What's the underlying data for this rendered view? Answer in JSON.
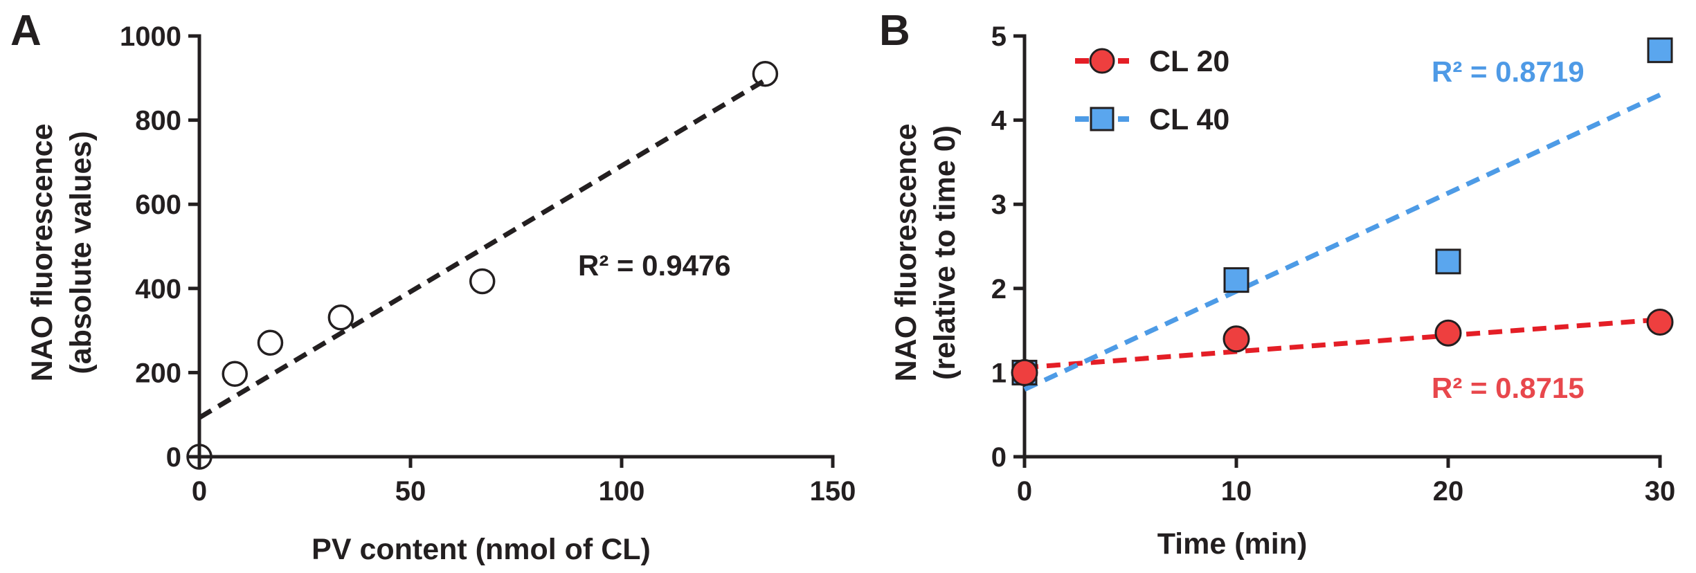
{
  "panels": {
    "a": {
      "label": "A"
    },
    "b": {
      "label": "B"
    }
  },
  "chart_data": [
    {
      "type": "scatter",
      "title": "",
      "xlabel": "PV content (nmol of CL)",
      "ylabel_line1": "NAO fluorescence",
      "ylabel_line2": "(absolute values)",
      "xlim": [
        0,
        150
      ],
      "ylim": [
        0,
        1000
      ],
      "xticks": [
        0,
        50,
        100,
        150
      ],
      "yticks": [
        0,
        200,
        400,
        600,
        800,
        1000
      ],
      "grid": false,
      "series": [
        {
          "marker": "open-circle",
          "color": "#231f20",
          "x": [
            0,
            8.4,
            16.8,
            33.5,
            67,
            134
          ],
          "y": [
            0,
            197,
            271,
            331,
            417,
            910
          ]
        }
      ],
      "trendline": {
        "style": "dashed",
        "color": "#231f20",
        "x": [
          0,
          134
        ],
        "y": [
          93,
          895
        ]
      },
      "annotation": "R² = 0.9476"
    },
    {
      "type": "scatter",
      "title": "",
      "xlabel": "Time (min)",
      "ylabel_line1": "NAO fluorescence",
      "ylabel_line2": "(relative to time 0)",
      "xlim": [
        0,
        30
      ],
      "ylim": [
        0,
        5
      ],
      "xticks": [
        0,
        10,
        20,
        30
      ],
      "yticks": [
        0,
        1,
        2,
        3,
        4,
        5
      ],
      "grid": false,
      "legend_position": "top-left",
      "series": [
        {
          "name": "CL 20",
          "marker": "circle",
          "color": "#ee3f3f",
          "line_color": "#e41e26",
          "x": [
            0,
            10,
            20,
            30
          ],
          "y": [
            1.0,
            1.4,
            1.47,
            1.6
          ],
          "trendline": {
            "x": [
              0,
              30
            ],
            "y": [
              1.06,
              1.63
            ]
          },
          "r2": "R² = 0.8715",
          "r2_color": "#e8474c"
        },
        {
          "name": "CL 40",
          "marker": "square",
          "color": "#5aa6ee",
          "line_color": "#4d9be6",
          "x": [
            0,
            10,
            20,
            30
          ],
          "y": [
            1.0,
            2.1,
            2.32,
            4.83
          ],
          "trendline": {
            "x": [
              0,
              30
            ],
            "y": [
              0.8,
              4.3
            ]
          },
          "r2": "R² = 0.8719",
          "r2_color": "#4e9ae6"
        }
      ]
    }
  ]
}
